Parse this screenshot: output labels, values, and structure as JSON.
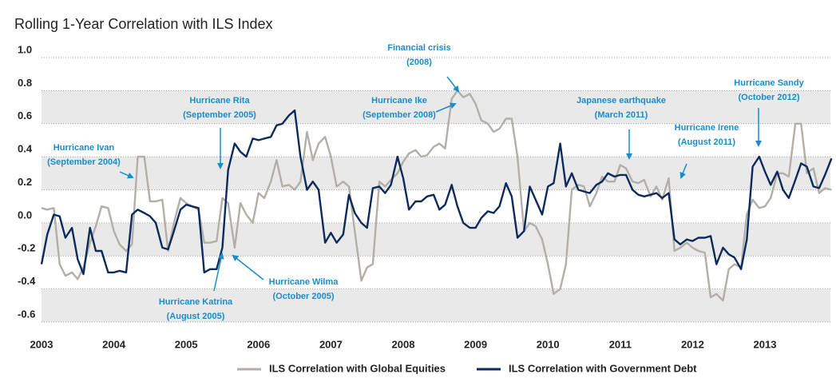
{
  "chart_data": {
    "type": "line",
    "title": "Rolling 1-Year Correlation with ILS Index",
    "x": [
      2003,
      2003.08,
      2003.17,
      2003.25,
      2003.33,
      2003.42,
      2003.5,
      2003.58,
      2003.67,
      2003.75,
      2003.83,
      2003.92,
      2004,
      2004.08,
      2004.17,
      2004.25,
      2004.33,
      2004.42,
      2004.5,
      2004.58,
      2004.67,
      2004.75,
      2004.83,
      2004.92,
      2005,
      2005.08,
      2005.17,
      2005.25,
      2005.33,
      2005.42,
      2005.5,
      2005.58,
      2005.67,
      2005.75,
      2005.83,
      2005.92,
      2006,
      2006.08,
      2006.17,
      2006.25,
      2006.33,
      2006.42,
      2006.5,
      2006.58,
      2006.67,
      2006.75,
      2006.83,
      2006.92,
      2007,
      2007.08,
      2007.17,
      2007.25,
      2007.33,
      2007.42,
      2007.5,
      2007.58,
      2007.67,
      2007.75,
      2007.83,
      2007.92,
      2008,
      2008.08,
      2008.17,
      2008.25,
      2008.33,
      2008.42,
      2008.5,
      2008.58,
      2008.67,
      2008.75,
      2008.83,
      2008.92,
      2009,
      2009.08,
      2009.17,
      2009.25,
      2009.33,
      2009.42,
      2009.5,
      2009.58,
      2009.67,
      2009.75,
      2009.83,
      2009.92,
      2010,
      2010.08,
      2010.17,
      2010.25,
      2010.33,
      2010.42,
      2010.5,
      2010.58,
      2010.67,
      2010.75,
      2010.83,
      2010.92,
      2011,
      2011.08,
      2011.17,
      2011.25,
      2011.33,
      2011.42,
      2011.5,
      2011.58,
      2011.67,
      2011.75,
      2011.83,
      2011.92,
      2012,
      2012.08,
      2012.17,
      2012.25,
      2012.33,
      2012.42,
      2012.5,
      2012.58,
      2012.67,
      2012.75,
      2012.83,
      2012.92,
      2013,
      2013.08,
      2013.17,
      2013.25,
      2013.33,
      2013.42,
      2013.5,
      2013.58,
      2013.67,
      2013.75,
      2013.83,
      2013.92
    ],
    "series": [
      {
        "name": "ILS Correlation with Global Equities",
        "color": "#b3afa8",
        "values": [
          0.09,
          0.08,
          0.09,
          -0.25,
          -0.32,
          -0.3,
          -0.34,
          -0.27,
          -0.12,
          -0.02,
          0.1,
          0.09,
          -0.05,
          -0.13,
          -0.17,
          -0.13,
          0.4,
          0.4,
          0.13,
          0.13,
          0.14,
          -0.17,
          0.0,
          0.15,
          0.12,
          0.1,
          0.08,
          -0.12,
          -0.12,
          -0.11,
          0.15,
          0.12,
          -0.15,
          0.12,
          0.05,
          0.0,
          0.18,
          0.15,
          0.25,
          0.38,
          0.22,
          0.23,
          0.2,
          0.25,
          0.55,
          0.38,
          0.48,
          0.52,
          0.4,
          0.22,
          0.25,
          0.22,
          -0.05,
          -0.35,
          -0.27,
          -0.25,
          0.25,
          0.22,
          0.26,
          0.3,
          0.37,
          0.42,
          0.44,
          0.4,
          0.41,
          0.46,
          0.48,
          0.45,
          0.75,
          0.8,
          0.76,
          0.78,
          0.72,
          0.62,
          0.6,
          0.55,
          0.57,
          0.63,
          0.63,
          0.4,
          -0.05,
          0.0,
          -0.02,
          -0.1,
          -0.25,
          -0.43,
          -0.4,
          -0.25,
          0.2,
          0.23,
          0.22,
          0.1,
          0.18,
          0.28,
          0.25,
          0.25,
          0.35,
          0.33,
          0.25,
          0.24,
          0.26,
          0.16,
          0.22,
          0.14,
          0.27,
          -0.17,
          -0.15,
          -0.12,
          -0.15,
          -0.17,
          -0.18,
          -0.45,
          -0.43,
          -0.47,
          -0.28,
          -0.25,
          -0.27,
          0.05,
          0.14,
          0.09,
          0.1,
          0.15,
          0.3,
          0.3,
          0.28,
          0.6,
          0.6,
          0.3,
          0.33,
          0.18,
          0.21,
          0.2
        ]
      },
      {
        "name": "ILS Correlation with Government Debt",
        "color": "#0d2a5c",
        "values": [
          -0.25,
          -0.07,
          0.05,
          0.04,
          -0.09,
          -0.03,
          -0.22,
          -0.31,
          -0.03,
          -0.17,
          -0.17,
          -0.3,
          -0.3,
          -0.29,
          -0.3,
          0.05,
          0.08,
          0.06,
          0.04,
          0.0,
          -0.15,
          -0.16,
          -0.05,
          0.08,
          0.11,
          0.1,
          0.09,
          -0.3,
          -0.28,
          -0.28,
          -0.15,
          0.32,
          0.48,
          0.43,
          0.4,
          0.51,
          0.5,
          0.51,
          0.52,
          0.59,
          0.6,
          0.65,
          0.68,
          0.4,
          0.2,
          0.25,
          0.2,
          -0.12,
          -0.06,
          -0.12,
          -0.07,
          0.17,
          0.06,
          0.0,
          -0.03,
          0.21,
          0.22,
          0.18,
          0.23,
          0.4,
          0.27,
          0.08,
          0.13,
          0.13,
          0.16,
          0.17,
          0.08,
          0.11,
          0.23,
          0.1,
          0.0,
          -0.03,
          -0.03,
          0.03,
          0.07,
          0.06,
          0.1,
          0.24,
          0.16,
          -0.09,
          -0.05,
          0.22,
          0.14,
          0.05,
          0.22,
          0.24,
          0.48,
          0.22,
          0.3,
          0.2,
          0.19,
          0.18,
          0.23,
          0.25,
          0.3,
          0.28,
          0.29,
          0.29,
          0.2,
          0.17,
          0.16,
          0.17,
          0.18,
          0.15,
          0.18,
          -0.1,
          -0.13,
          -0.1,
          -0.11,
          -0.09,
          -0.09,
          -0.08,
          -0.25,
          -0.15,
          -0.19,
          -0.21,
          -0.28,
          -0.1,
          0.34,
          0.4,
          0.31,
          0.23,
          0.31,
          0.2,
          0.15,
          0.26,
          0.36,
          0.34,
          0.22,
          0.21,
          0.29,
          0.39
        ]
      }
    ],
    "xlim": [
      2003,
      2013.95
    ],
    "xticks": [
      2003,
      2004,
      2005,
      2006,
      2007,
      2008,
      2009,
      2010,
      2011,
      2012,
      2013
    ],
    "ylim": [
      -0.6,
      1.0
    ],
    "yticks": [
      {
        "value": 1.0,
        "label": "1.0"
      },
      0.8,
      0.6,
      0.4,
      0.2,
      {
        "value": 0.0,
        "label": "0.0"
      },
      -0.2,
      -0.4,
      -0.6
    ],
    "grid": true,
    "bands": true,
    "legend": "bottom",
    "annotation_color": "#1a8dc8",
    "annotations": [
      {
        "text": [
          "Hurricane Ivan",
          "(September 2004)"
        ]
      },
      {
        "text": [
          "Hurricane Rita",
          "(September 2005)"
        ]
      },
      {
        "text": [
          "Hurricane Katrina",
          "(August 2005)"
        ]
      },
      {
        "text": [
          "Hurricane Wilma",
          "(October 2005)"
        ]
      },
      {
        "text": [
          "Financial crisis",
          "(2008)"
        ]
      },
      {
        "text": [
          "Hurricane Ike",
          "(September 2008)"
        ]
      },
      {
        "text": [
          "Japanese earthquake",
          "(March 2011)"
        ]
      },
      {
        "text": [
          "Hurricane Irene",
          "(August 2011)"
        ]
      },
      {
        "text": [
          "Hurricane Sandy",
          "(October 2012)"
        ]
      }
    ]
  }
}
